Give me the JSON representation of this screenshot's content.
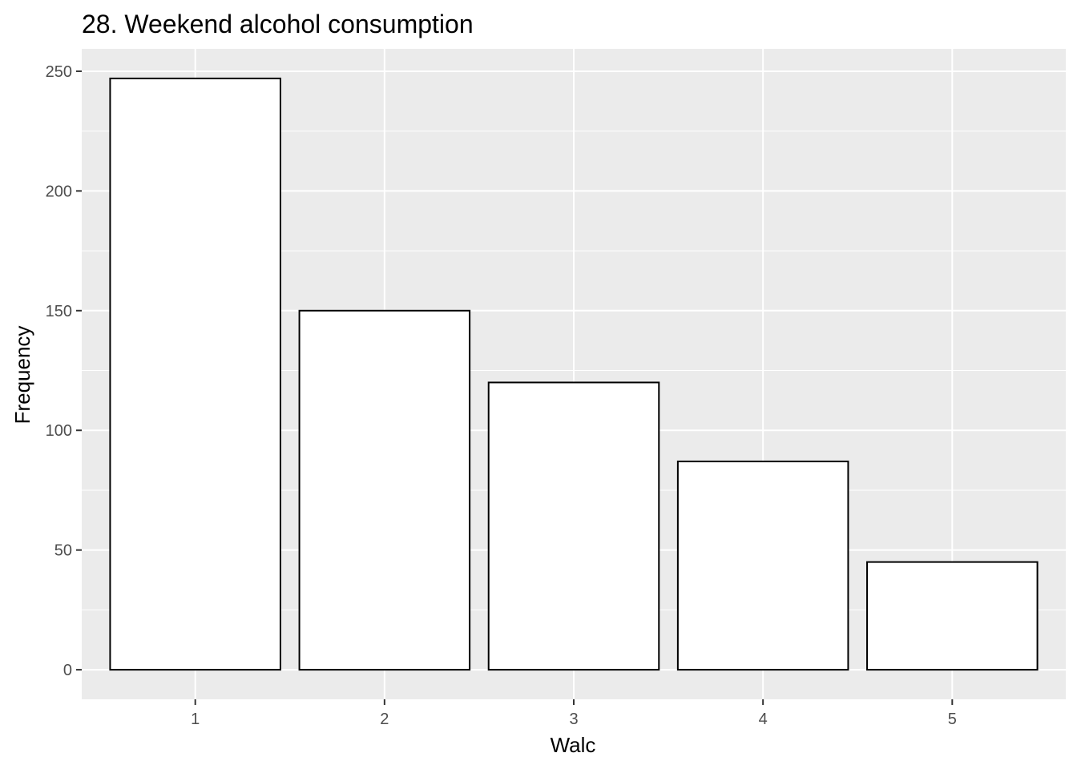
{
  "chart_data": {
    "type": "bar",
    "title": "28. Weekend alcohol consumption",
    "xlabel": "Walc",
    "ylabel": "Frequency",
    "categories": [
      "1",
      "2",
      "3",
      "4",
      "5"
    ],
    "values": [
      247,
      150,
      120,
      87,
      45
    ],
    "ylim": [
      -12.35,
      259.35
    ],
    "yticks": [
      0,
      50,
      100,
      150,
      200,
      250
    ],
    "grid": true,
    "legend": "none",
    "colors": {
      "panel_background": "#ebebeb",
      "gridline": "#ffffff",
      "bar_fill": "#ffffff",
      "bar_outline": "#000000",
      "tick_label": "#4d4d4d",
      "tick_mark": "#333333"
    }
  }
}
